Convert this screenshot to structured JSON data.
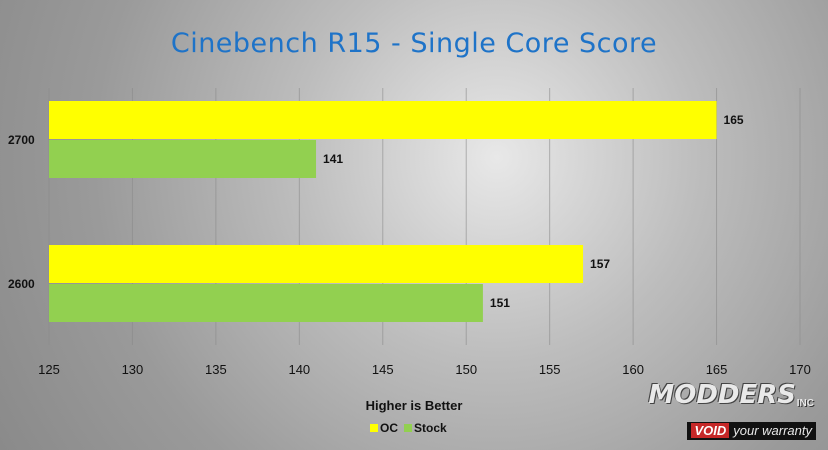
{
  "chart_data": {
    "type": "bar",
    "orientation": "horizontal",
    "title": "Cinebench R15 - Single Core Score",
    "xlabel": "Higher is Better",
    "categories": [
      "2700",
      "2600"
    ],
    "series": [
      {
        "name": "OC",
        "values": [
          165,
          157
        ],
        "color": "#ffff00"
      },
      {
        "name": "Stock",
        "values": [
          141,
          151
        ],
        "color": "#92d050"
      }
    ],
    "xlim": [
      125,
      170
    ],
    "xticks": [
      125,
      130,
      135,
      140,
      145,
      150,
      155,
      160,
      165,
      170
    ],
    "grid": true,
    "legend": "bottom"
  },
  "watermark": {
    "brand": "MODDERS",
    "suffix": "INC",
    "tag_void": "VOID",
    "tag_text": "your warranty"
  }
}
